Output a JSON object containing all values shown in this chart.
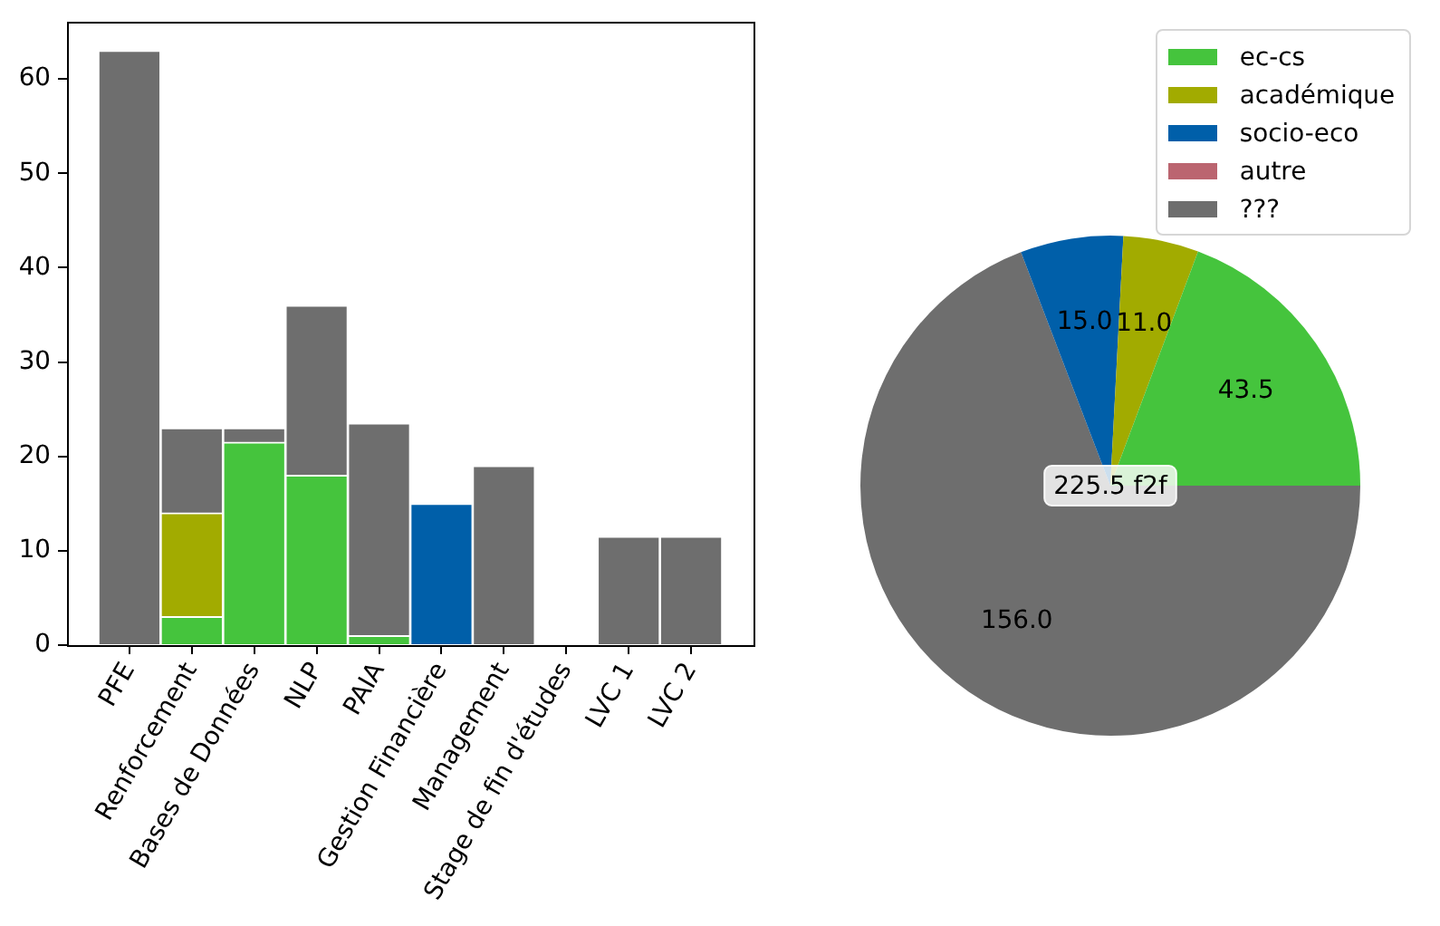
{
  "chart_data": [
    {
      "type": "bar",
      "categories": [
        "PFE",
        "Renforcement",
        "Bases de Données",
        "NLP",
        "PAIA",
        "Gestion Financière",
        "Management",
        "Stage de fin d'études",
        "LVC 1",
        "LVC 2"
      ],
      "stacked": true,
      "series": [
        {
          "color": "#45c43d",
          "values": [
            0,
            3,
            21.5,
            18,
            1,
            0,
            0,
            0,
            0,
            0
          ]
        },
        {
          "color": "#a2ab00",
          "values": [
            0,
            11,
            0,
            0,
            0,
            0,
            0,
            0,
            0,
            0
          ]
        },
        {
          "color": "#005fa9",
          "values": [
            0,
            0,
            0,
            0,
            0,
            15,
            0,
            0,
            0,
            0
          ]
        },
        {
          "color": "#6e6e6e",
          "values": [
            63,
            9,
            1.5,
            18,
            22.5,
            0,
            19,
            0,
            11.5,
            11.5
          ]
        }
      ],
      "ylim": [
        0,
        66
      ],
      "yticks": [
        0,
        10,
        20,
        30,
        40,
        50,
        60
      ],
      "grid": false
    },
    {
      "type": "pie",
      "categories": [
        "ec-cs",
        "académique",
        "socio-eco",
        "autre",
        "???"
      ],
      "values": [
        43.5,
        11,
        15,
        0,
        156
      ],
      "colors": [
        "#45c43d",
        "#a2ab00",
        "#005fa9",
        "#bb6570",
        "#6e6e6e"
      ],
      "value_labels": [
        "43.5",
        "11.0",
        "15.0",
        null,
        "156.0"
      ],
      "legend": "top right",
      "annotations": [
        "225.5 f2f"
      ]
    }
  ]
}
